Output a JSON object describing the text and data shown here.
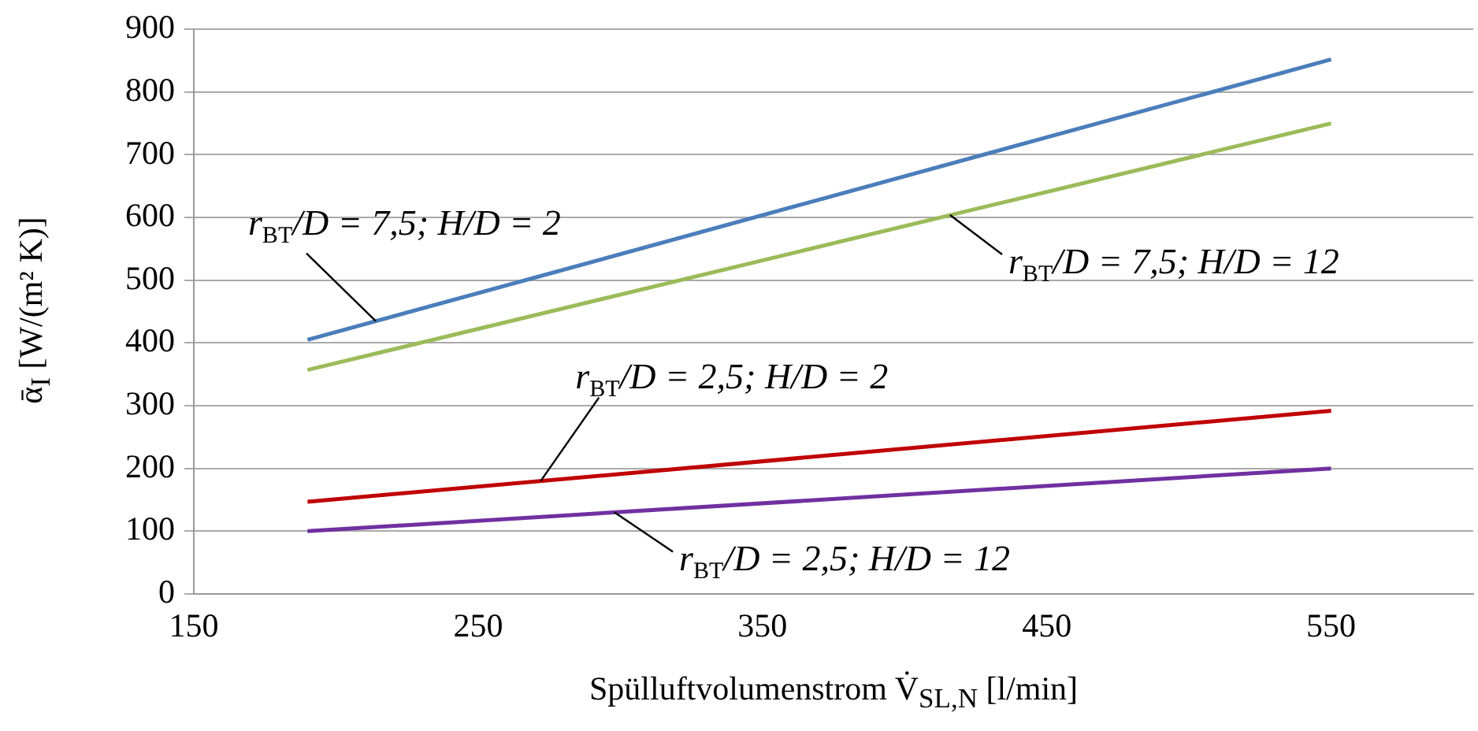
{
  "chart_data": {
    "type": "line",
    "xlabel": "Spülluftvolumenstrom  V̇$_{SL,N}$ [l/min]",
    "ylabel": "ᾱ$_{I}$ [W/(m² K)]",
    "xlim": [
      150,
      600
    ],
    "xticks": [
      150,
      250,
      350,
      450,
      550
    ],
    "ylim": [
      0,
      900
    ],
    "yticks": [
      0,
      100,
      200,
      300,
      400,
      500,
      600,
      700,
      800,
      900
    ],
    "x": [
      190,
      550
    ],
    "grid": "y",
    "legend": false,
    "marker": "none",
    "line_style": "solid",
    "series": [
      {
        "color": "#4a7ebb",
        "values": [
          405,
          852
        ]
      },
      {
        "color": "#9bbb59",
        "values": [
          357,
          750
        ]
      },
      {
        "color": "#c00000",
        "values": [
          147,
          292
        ]
      },
      {
        "color": "#7030a0",
        "values": [
          100,
          200
        ]
      }
    ],
    "annotations": [
      {
        "text": "r$_{BT}$/D = 7,5; H/D = 2",
        "x": 214,
        "y": 435
      },
      {
        "text": "r$_{BT}$/D = 7,5; H/D = 12",
        "x": 416,
        "y": 604
      },
      {
        "text": "r$_{BT}$/D = 2,5; H/D = 2",
        "x": 272,
        "y": 180
      },
      {
        "text": "r$_{BT}$/D = 2,5; H/D = 12",
        "x": 298,
        "y": 130
      }
    ]
  }
}
